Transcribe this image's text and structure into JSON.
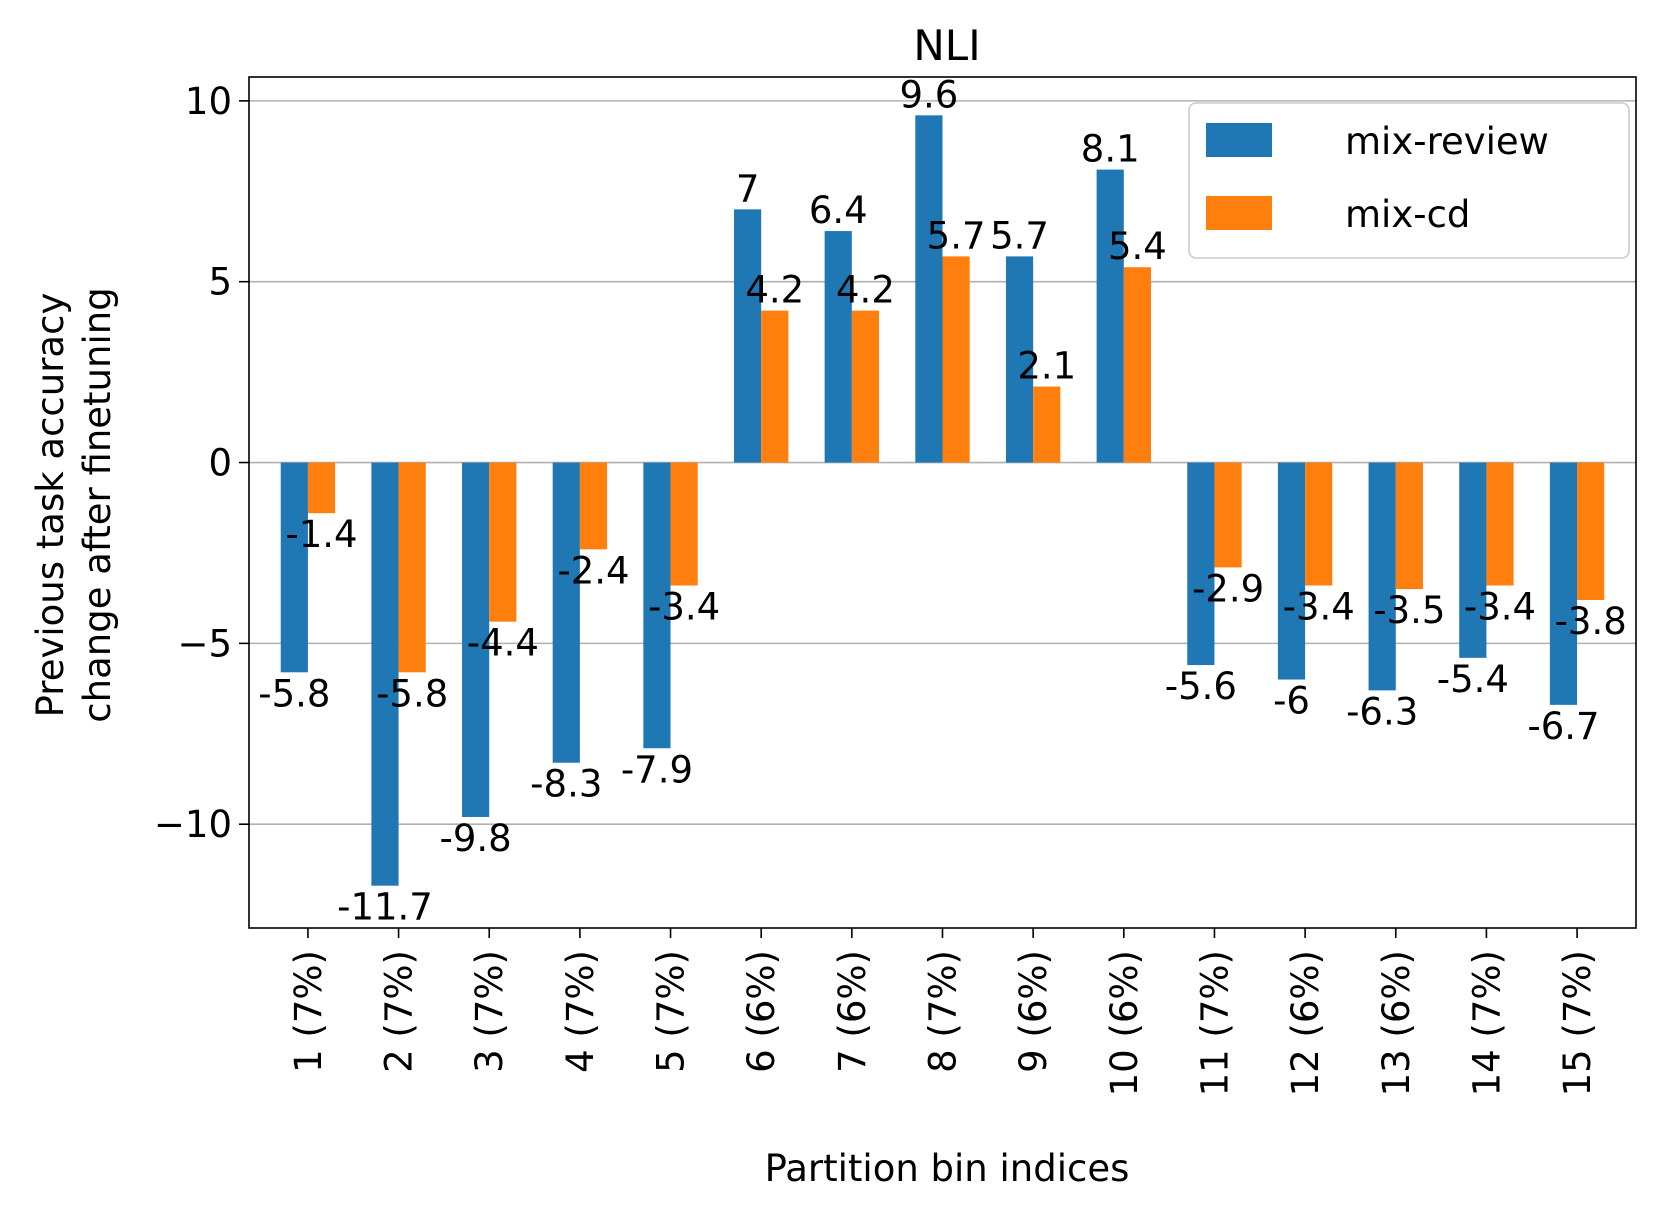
{
  "chart_data": {
    "type": "bar",
    "title": "NLI",
    "xlabel": "Partition bin indices",
    "ylabel_lines": [
      "Previous task accuracy",
      "change after finetuning"
    ],
    "categories": [
      "1 (7%)",
      "2 (7%)",
      "3 (7%)",
      "4 (7%)",
      "5 (7%)",
      "6 (6%)",
      "7 (6%)",
      "8 (7%)",
      "9 (6%)",
      "10 (6%)",
      "11 (7%)",
      "12 (6%)",
      "13 (6%)",
      "14 (7%)",
      "15 (7%)"
    ],
    "series": [
      {
        "name": "mix-review",
        "color": "#1f77b4",
        "values": [
          -5.8,
          -11.7,
          -9.8,
          -8.3,
          -7.9,
          7,
          6.4,
          9.6,
          5.7,
          8.1,
          -5.6,
          -6,
          -6.3,
          -5.4,
          -6.7
        ],
        "labels": [
          "-5.8",
          "-11.7",
          "-9.8",
          "-8.3",
          "-7.9",
          "7",
          "6.4",
          "9.6",
          "5.7",
          "8.1",
          "-5.6",
          "-6",
          "-6.3",
          "-5.4",
          "-6.7"
        ]
      },
      {
        "name": "mix-cd",
        "color": "#ff7f0e",
        "values": [
          -1.4,
          -5.8,
          -4.4,
          -2.4,
          -3.4,
          4.2,
          4.2,
          5.7,
          2.1,
          5.4,
          -2.9,
          -3.4,
          -3.5,
          -3.4,
          -3.8
        ],
        "labels": [
          "-1.4",
          "-5.8",
          "-4.4",
          "-2.4",
          "-3.4",
          "4.2",
          "4.2",
          "5.7",
          "2.1",
          "5.4",
          "-2.9",
          "-3.4",
          "-3.5",
          "-3.4",
          "-3.8"
        ]
      }
    ],
    "ylim": [
      -12.87,
      10.66
    ],
    "yticks": [
      10,
      5,
      0,
      -5,
      -10
    ],
    "ytick_labels": [
      "10",
      "5",
      "0",
      "−5",
      "−10"
    ],
    "grid": "horizontal",
    "legend_position": "top-right"
  }
}
